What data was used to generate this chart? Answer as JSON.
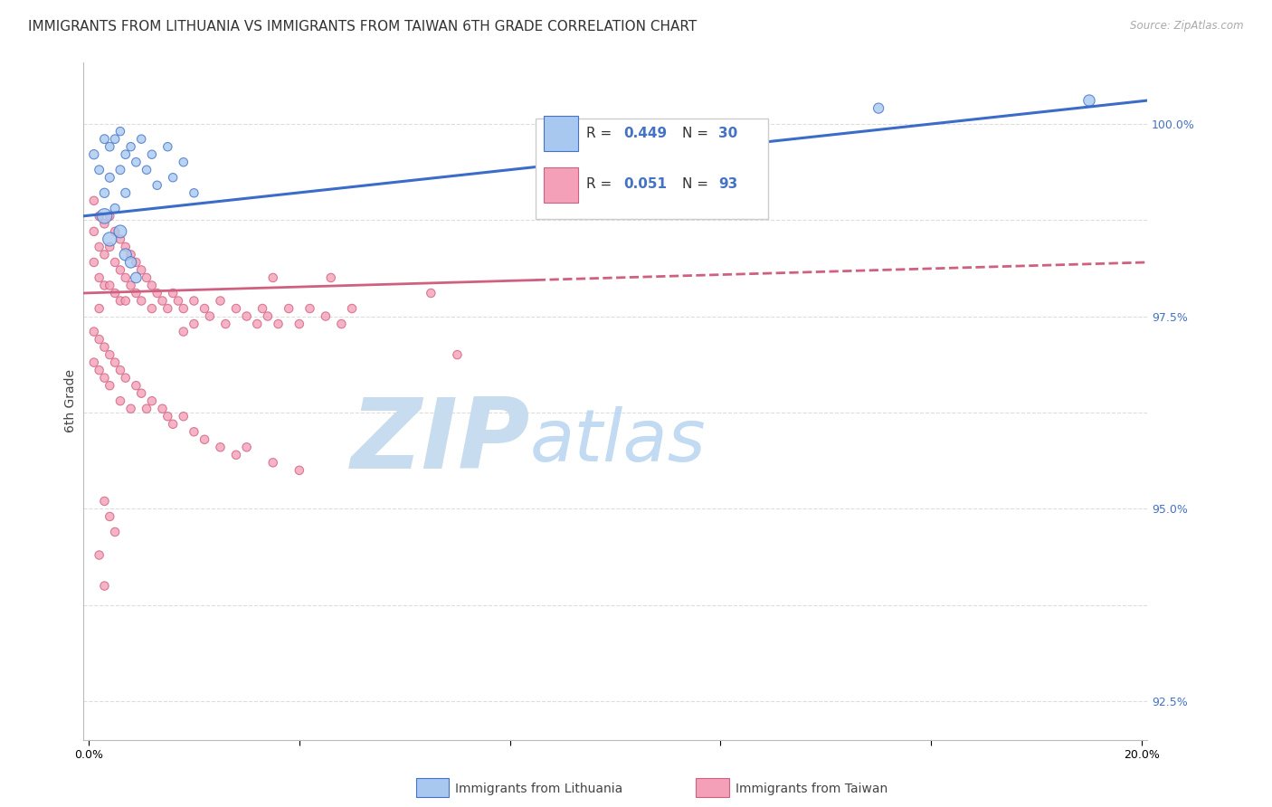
{
  "title": "IMMIGRANTS FROM LITHUANIA VS IMMIGRANTS FROM TAIWAN 6TH GRADE CORRELATION CHART",
  "source": "Source: ZipAtlas.com",
  "ylabel": "6th Grade",
  "ylim": [
    0.92,
    1.008
  ],
  "xlim": [
    -0.001,
    0.201
  ],
  "y_ticks_right": [
    0.925,
    0.9375,
    0.95,
    0.9625,
    0.975,
    0.9875,
    1.0
  ],
  "y_tick_labels_right": [
    "92.5%",
    "",
    "95.0%",
    "",
    "97.5%",
    "",
    "100.0%"
  ],
  "x_tick_positions": [
    0.0,
    0.04,
    0.08,
    0.12,
    0.16,
    0.2
  ],
  "x_tick_labels": [
    "0.0%",
    "",
    "",
    "",
    "",
    "20.0%"
  ],
  "color_lithuania": "#A8C8F0",
  "color_taiwan": "#F4A0B8",
  "color_edge_blue": "#4472C4",
  "color_edge_pink": "#D06080",
  "color_trendline_blue": "#3B6CC8",
  "color_trendline_pink": "#D06080",
  "color_blue_text": "#4472C4",
  "color_pink_text": "#D06080",
  "watermark_zip": "ZIP",
  "watermark_atlas": "atlas",
  "watermark_color": "#C8DCF0",
  "background_color": "#FFFFFF",
  "grid_color": "#DDDDDD",
  "title_fontsize": 11,
  "axis_label_fontsize": 10,
  "tick_fontsize": 9,
  "legend_R1": "0.449",
  "legend_N1": "30",
  "legend_R2": "0.051",
  "legend_N2": "93",
  "lit_x": [
    0.001,
    0.002,
    0.003,
    0.003,
    0.004,
    0.004,
    0.005,
    0.005,
    0.006,
    0.006,
    0.007,
    0.007,
    0.008,
    0.009,
    0.01,
    0.011,
    0.012,
    0.013,
    0.015,
    0.016,
    0.018,
    0.02,
    0.003,
    0.004,
    0.006,
    0.007,
    0.008,
    0.009,
    0.15,
    0.19
  ],
  "lit_y": [
    0.996,
    0.994,
    0.998,
    0.991,
    0.997,
    0.993,
    0.998,
    0.989,
    0.999,
    0.994,
    0.996,
    0.991,
    0.997,
    0.995,
    0.998,
    0.994,
    0.996,
    0.992,
    0.997,
    0.993,
    0.995,
    0.991,
    0.988,
    0.985,
    0.986,
    0.983,
    0.982,
    0.98,
    1.002,
    1.003
  ],
  "lit_sizes": [
    55,
    50,
    50,
    55,
    48,
    52,
    48,
    52,
    46,
    50,
    48,
    52,
    46,
    48,
    46,
    46,
    46,
    46,
    46,
    46,
    46,
    46,
    140,
    120,
    100,
    90,
    80,
    70,
    65,
    80
  ],
  "tai_x": [
    0.001,
    0.001,
    0.001,
    0.002,
    0.002,
    0.002,
    0.002,
    0.003,
    0.003,
    0.003,
    0.004,
    0.004,
    0.004,
    0.005,
    0.005,
    0.005,
    0.006,
    0.006,
    0.006,
    0.007,
    0.007,
    0.007,
    0.008,
    0.008,
    0.009,
    0.009,
    0.01,
    0.01,
    0.011,
    0.012,
    0.012,
    0.013,
    0.014,
    0.015,
    0.016,
    0.017,
    0.018,
    0.018,
    0.02,
    0.02,
    0.022,
    0.023,
    0.025,
    0.026,
    0.028,
    0.03,
    0.032,
    0.033,
    0.034,
    0.035,
    0.036,
    0.038,
    0.04,
    0.042,
    0.045,
    0.046,
    0.048,
    0.05,
    0.065,
    0.07,
    0.001,
    0.001,
    0.002,
    0.002,
    0.003,
    0.003,
    0.004,
    0.004,
    0.005,
    0.006,
    0.006,
    0.007,
    0.008,
    0.009,
    0.01,
    0.011,
    0.012,
    0.014,
    0.015,
    0.016,
    0.018,
    0.02,
    0.022,
    0.025,
    0.028,
    0.03,
    0.035,
    0.04,
    0.003,
    0.004,
    0.005,
    0.002,
    0.003
  ],
  "tai_y": [
    0.99,
    0.986,
    0.982,
    0.988,
    0.984,
    0.98,
    0.976,
    0.987,
    0.983,
    0.979,
    0.988,
    0.984,
    0.979,
    0.986,
    0.982,
    0.978,
    0.985,
    0.981,
    0.977,
    0.984,
    0.98,
    0.977,
    0.983,
    0.979,
    0.982,
    0.978,
    0.981,
    0.977,
    0.98,
    0.979,
    0.976,
    0.978,
    0.977,
    0.976,
    0.978,
    0.977,
    0.976,
    0.973,
    0.977,
    0.974,
    0.976,
    0.975,
    0.977,
    0.974,
    0.976,
    0.975,
    0.974,
    0.976,
    0.975,
    0.98,
    0.974,
    0.976,
    0.974,
    0.976,
    0.975,
    0.98,
    0.974,
    0.976,
    0.978,
    0.97,
    0.973,
    0.969,
    0.972,
    0.968,
    0.971,
    0.967,
    0.97,
    0.966,
    0.969,
    0.968,
    0.964,
    0.967,
    0.963,
    0.966,
    0.965,
    0.963,
    0.964,
    0.963,
    0.962,
    0.961,
    0.962,
    0.96,
    0.959,
    0.958,
    0.957,
    0.958,
    0.956,
    0.955,
    0.951,
    0.949,
    0.947,
    0.944,
    0.94
  ],
  "tai_sizes": [
    46,
    46,
    46,
    46,
    46,
    46,
    46,
    46,
    46,
    46,
    46,
    46,
    46,
    46,
    46,
    46,
    46,
    46,
    46,
    46,
    46,
    46,
    46,
    46,
    46,
    46,
    46,
    46,
    46,
    46,
    46,
    46,
    46,
    46,
    46,
    46,
    46,
    46,
    46,
    46,
    46,
    46,
    46,
    46,
    46,
    46,
    46,
    46,
    46,
    46,
    46,
    46,
    46,
    46,
    46,
    46,
    46,
    46,
    46,
    46,
    46,
    46,
    46,
    46,
    46,
    46,
    46,
    46,
    46,
    46,
    46,
    46,
    46,
    46,
    46,
    46,
    46,
    46,
    46,
    46,
    46,
    46,
    46,
    46,
    46,
    46,
    46,
    46,
    46,
    46,
    46,
    46,
    46
  ]
}
